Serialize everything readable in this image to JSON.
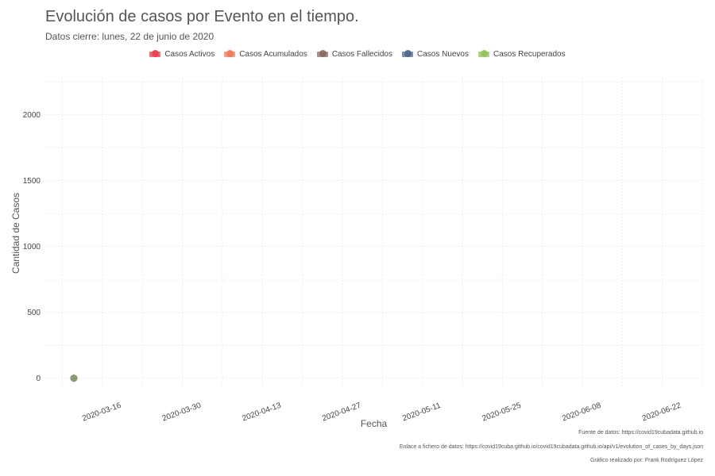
{
  "chart_data": {
    "type": "scatter",
    "title": "Evolución de casos por Evento en el tiempo.",
    "subtitle": "Datos cierre: lunes, 22 de junio de 2020",
    "xlabel": "Fecha",
    "ylabel": "Cantidad de Casos",
    "x_type": "date",
    "xlim": [
      "2020-03-06",
      "2020-06-29"
    ],
    "ylim": [
      -80,
      2280
    ],
    "x_ticks": [
      "2020-03-16",
      "2020-03-30",
      "2020-04-13",
      "2020-04-27",
      "2020-05-11",
      "2020-05-25",
      "2020-06-08",
      "2020-06-22"
    ],
    "y_ticks": [
      0,
      500,
      1000,
      1500,
      2000
    ],
    "grid": true,
    "legend_position": "top",
    "series": [
      {
        "name": "Casos Activos",
        "color": "#e8414e",
        "points": [
          {
            "x": "2020-03-11",
            "y": 0
          }
        ]
      },
      {
        "name": "Casos Acumulados",
        "color": "#ef7a5c",
        "points": [
          {
            "x": "2020-03-11",
            "y": 0
          }
        ]
      },
      {
        "name": "Casos Fallecidos",
        "color": "#8c6d62",
        "points": [
          {
            "x": "2020-03-11",
            "y": 0
          }
        ]
      },
      {
        "name": "Casos Nuevos",
        "color": "#53688f",
        "points": [
          {
            "x": "2020-03-11",
            "y": 0
          }
        ]
      },
      {
        "name": "Casos Recuperados",
        "color": "#92c35e",
        "points": [
          {
            "x": "2020-03-11",
            "y": 0
          }
        ]
      }
    ]
  },
  "footer": {
    "source": "Fuente de datos: https://covid19cubadata.github.io",
    "link": "Enlace a fichero de datos: https://covid19cuba.github.io/covid19cubadata.github.io/api/v1/evolution_of_cases_by_days.json",
    "credit": "Gráfico realizado por: Frank Rodríguez López"
  }
}
